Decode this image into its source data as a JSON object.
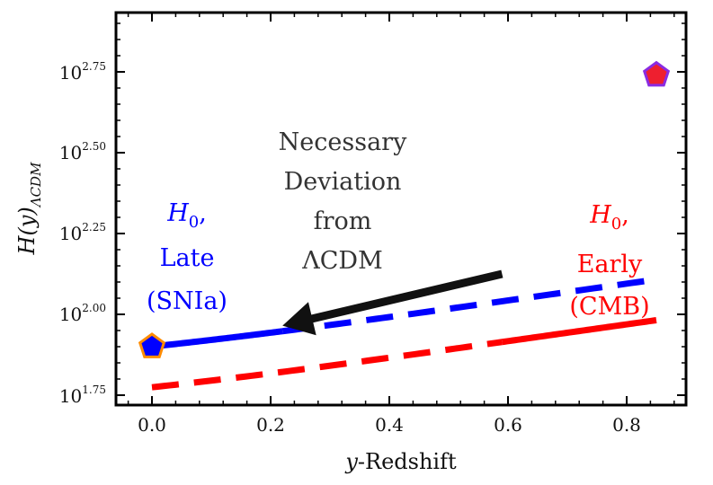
{
  "chart_data": {
    "type": "line",
    "title": "",
    "xlabel": "y-Redshift",
    "xlabel_italic": "y",
    "xlabel_rest": "-Redshift",
    "ylabel": "H(y)ΛCDM",
    "ylabel_main": "H(y)",
    "ylabel_sub": "ΛCDM",
    "xlim": [
      -0.06,
      0.9
    ],
    "ylim_log10": [
      1.74,
      2.93
    ],
    "x_ticks": [
      {
        "value": 0.0,
        "label": "0.0"
      },
      {
        "value": 0.2,
        "label": "0.2"
      },
      {
        "value": 0.4,
        "label": "0.4"
      },
      {
        "value": 0.6,
        "label": "0.6"
      },
      {
        "value": 0.8,
        "label": "0.8"
      }
    ],
    "y_ticks": [
      {
        "value": 1.75,
        "base": "10",
        "exp": "1.75"
      },
      {
        "value": 2.0,
        "base": "10",
        "exp": "2.00"
      },
      {
        "value": 2.25,
        "base": "10",
        "exp": "2.25"
      },
      {
        "value": 2.5,
        "base": "10",
        "exp": "2.50"
      },
      {
        "value": 2.75,
        "base": "10",
        "exp": "2.75"
      }
    ],
    "series": [
      {
        "name": "Late ΛCDM (H0 from SNIa)",
        "color": "#0000ff",
        "h0": 79.5,
        "solid_range": [
          0.0,
          0.22
        ],
        "dashed_range": [
          0.22,
          0.85
        ]
      },
      {
        "name": "Early ΛCDM (H0 from CMB)",
        "color": "#ff0000",
        "h0": 59.5,
        "solid_range": [
          0.59,
          0.85
        ],
        "dashed_range": [
          0.0,
          0.59
        ]
      }
    ],
    "markers": [
      {
        "name": "late-h0-marker",
        "x": 0.0,
        "log10_y": 1.9,
        "fill": "#0000ff",
        "edge": "#ff8c00"
      },
      {
        "name": "early-h0-marker",
        "x": 0.85,
        "log10_y": 2.74,
        "fill": "#ee1f2f",
        "edge": "#8a2be2"
      }
    ],
    "arrow": {
      "from_x": 0.59,
      "from_log10_y": 2.125,
      "to_x": 0.22,
      "to_log10_y": 1.965,
      "color": "#111111"
    },
    "annotations": {
      "deviation": [
        "Necessary",
        "Deviation",
        "from",
        "ΛCDM"
      ],
      "late": {
        "symbol": "H",
        "sub": "0",
        "suffix": ",",
        "lines": [
          "Late",
          "(SNIa)"
        ],
        "color": "#0000ff"
      },
      "early": {
        "symbol": "H",
        "sub": "0",
        "suffix": ",",
        "lines": [
          "Early",
          "(CMB)"
        ],
        "color": "#ff0000"
      }
    }
  }
}
